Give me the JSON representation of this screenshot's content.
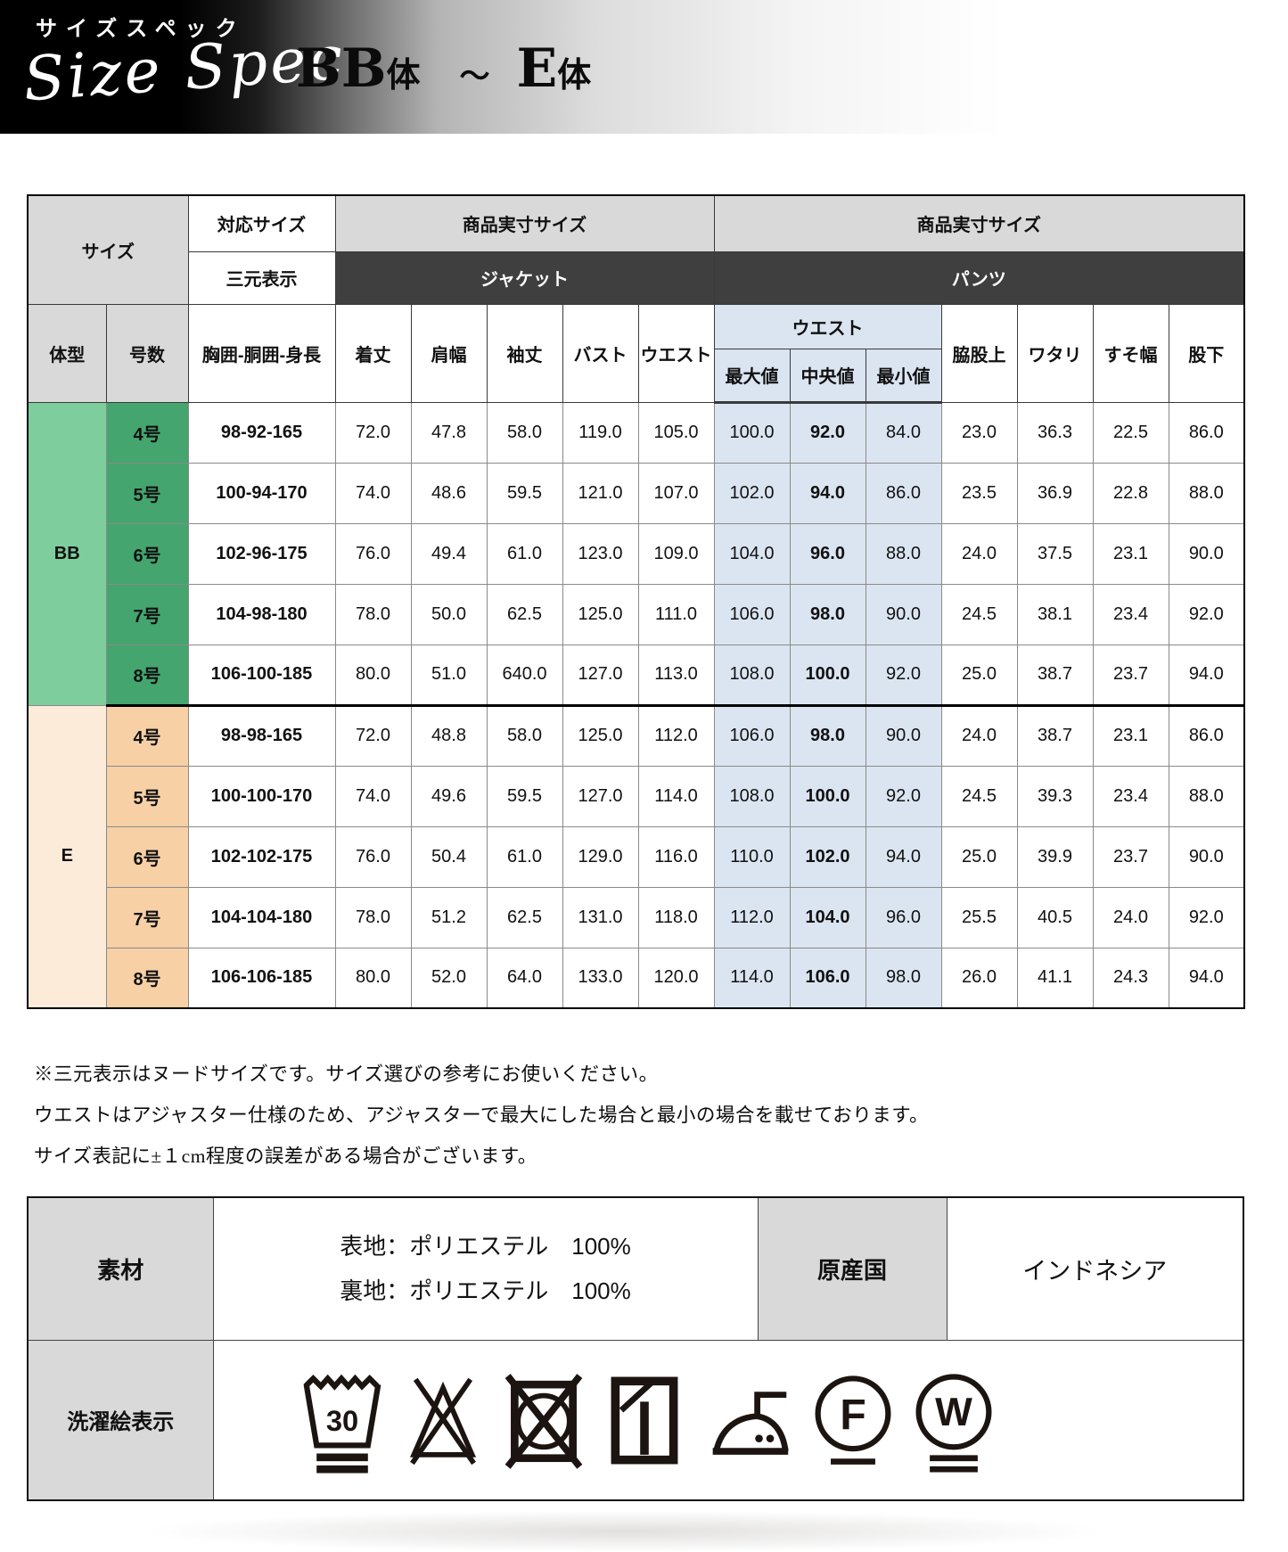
{
  "header": {
    "title_jp": "サイズスペック",
    "title_script": "Size Spec",
    "range_left": "BB",
    "range_left_suffix": "体",
    "tilde": "～",
    "range_right": "E",
    "range_right_suffix": "体"
  },
  "table": {
    "corner_label": "サイズ",
    "taiou_label": "対応サイズ",
    "sangen_label": "三元表示",
    "jacket_group_label": "商品実寸サイズ",
    "jacket_label": "ジャケット",
    "pants_group_label": "商品実寸サイズ",
    "pants_label": "パンツ",
    "col_body_type": "体型",
    "col_size_no": "号数",
    "col_nude": "胸囲-胴囲-身長",
    "jacket_cols": [
      "着丈",
      "肩幅",
      "袖丈",
      "バスト",
      "ウエスト"
    ],
    "waist_group_label": "ウエスト",
    "waist_sub_cols": [
      "最大値",
      "中央値",
      "最小値"
    ],
    "pants_cols": [
      "脇股上",
      "ワタリ",
      "すそ幅",
      "股下"
    ],
    "sections": [
      {
        "body_type": "BB",
        "rows": [
          {
            "size_no": "4号",
            "nude": "98-92-165",
            "values": [
              "72.0",
              "47.8",
              "58.0",
              "119.0",
              "105.0",
              "100.0",
              "92.0",
              "84.0",
              "23.0",
              "36.3",
              "22.5",
              "86.0"
            ]
          },
          {
            "size_no": "5号",
            "nude": "100-94-170",
            "values": [
              "74.0",
              "48.6",
              "59.5",
              "121.0",
              "107.0",
              "102.0",
              "94.0",
              "86.0",
              "23.5",
              "36.9",
              "22.8",
              "88.0"
            ]
          },
          {
            "size_no": "6号",
            "nude": "102-96-175",
            "values": [
              "76.0",
              "49.4",
              "61.0",
              "123.0",
              "109.0",
              "104.0",
              "96.0",
              "88.0",
              "24.0",
              "37.5",
              "23.1",
              "90.0"
            ]
          },
          {
            "size_no": "7号",
            "nude": "104-98-180",
            "values": [
              "78.0",
              "50.0",
              "62.5",
              "125.0",
              "111.0",
              "106.0",
              "98.0",
              "90.0",
              "24.5",
              "38.1",
              "23.4",
              "92.0"
            ]
          },
          {
            "size_no": "8号",
            "nude": "106-100-185",
            "values": [
              "80.0",
              "51.0",
              "640.0",
              "127.0",
              "113.0",
              "108.0",
              "100.0",
              "92.0",
              "25.0",
              "38.7",
              "23.7",
              "94.0"
            ]
          }
        ]
      },
      {
        "body_type": "E",
        "rows": [
          {
            "size_no": "4号",
            "nude": "98-98-165",
            "values": [
              "72.0",
              "48.8",
              "58.0",
              "125.0",
              "112.0",
              "106.0",
              "98.0",
              "90.0",
              "24.0",
              "38.7",
              "23.1",
              "86.0"
            ]
          },
          {
            "size_no": "5号",
            "nude": "100-100-170",
            "values": [
              "74.0",
              "49.6",
              "59.5",
              "127.0",
              "114.0",
              "108.0",
              "100.0",
              "92.0",
              "24.5",
              "39.3",
              "23.4",
              "88.0"
            ]
          },
          {
            "size_no": "6号",
            "nude": "102-102-175",
            "values": [
              "76.0",
              "50.4",
              "61.0",
              "129.0",
              "116.0",
              "110.0",
              "102.0",
              "94.0",
              "25.0",
              "39.9",
              "23.7",
              "90.0"
            ]
          },
          {
            "size_no": "7号",
            "nude": "104-104-180",
            "values": [
              "78.0",
              "51.2",
              "62.5",
              "131.0",
              "118.0",
              "112.0",
              "104.0",
              "96.0",
              "25.5",
              "40.5",
              "24.0",
              "92.0"
            ]
          },
          {
            "size_no": "8号",
            "nude": "106-106-185",
            "values": [
              "80.0",
              "52.0",
              "64.0",
              "133.0",
              "120.0",
              "114.0",
              "106.0",
              "98.0",
              "26.0",
              "41.1",
              "24.3",
              "94.0"
            ]
          }
        ]
      }
    ]
  },
  "notes": [
    "※三元表示はヌードサイズです。サイズ選びの参考にお使いください。",
    "ウエストはアジャスター仕様のため、アジャスターで最大にした場合と最小の場合を載せております。",
    "サイズ表記に±１cm程度の誤差がある場合がございます。"
  ],
  "info": {
    "material_label": "素材",
    "material_lines": [
      "表地：ポリエステル　100%",
      "裏地：ポリエステル　100%"
    ],
    "origin_label": "原産国",
    "origin_value": "インドネシア",
    "care_label": "洗濯絵表示",
    "care_icons": [
      {
        "name": "wash-30-very-gentle",
        "label": "30"
      },
      {
        "name": "no-bleach"
      },
      {
        "name": "no-tumble-dry"
      },
      {
        "name": "shade-hang-dry"
      },
      {
        "name": "iron-medium-2dots"
      },
      {
        "name": "professional-dryclean-F-gentle",
        "label": "F"
      },
      {
        "name": "professional-wetclean-W-very-gentle",
        "label": "W"
      }
    ]
  },
  "colors": {
    "bb_body": "#7ecd9d",
    "bb_size": "#44a56f",
    "e_body": "#fcebd9",
    "e_size": "#f7d0a6",
    "waist_blue": "#dbe5f1",
    "header_gray": "#d9d9d9",
    "band_dark": "#3f3f3f"
  }
}
